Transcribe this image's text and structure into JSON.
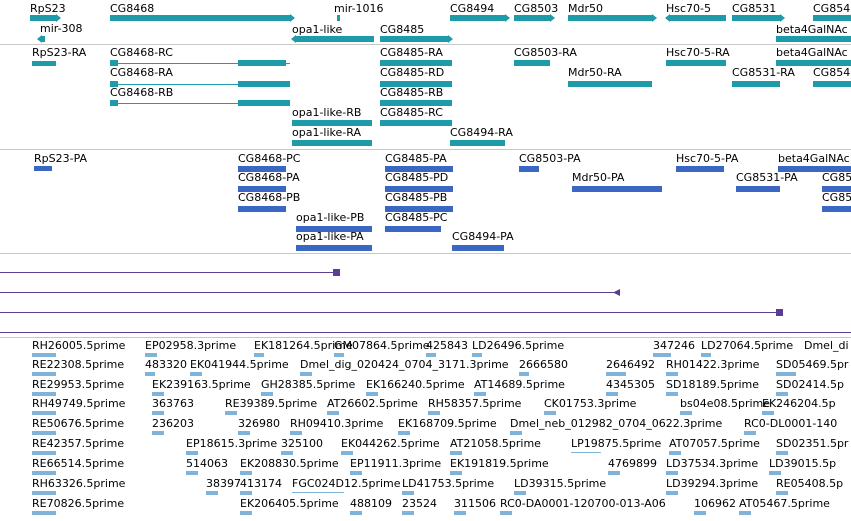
{
  "genes": {
    "row1": [
      "RpS23",
      "CG8468",
      "mir-1016",
      "CG8494",
      "CG8503",
      "Mdr50",
      "Hsc70-5",
      "CG8531",
      "CG854"
    ],
    "row2": [
      "mir-308",
      "opa1-like",
      "CG8485",
      "beta4GalNAc"
    ]
  },
  "transcripts": {
    "row1": [
      "RpS23-RA",
      "CG8468-RC",
      "CG8485-RA",
      "CG8503-RA",
      "Hsc70-5-RA",
      "beta4GalNAc"
    ],
    "row2": [
      "CG8468-RA",
      "CG8485-RD",
      "Mdr50-RA",
      "CG8531-RA",
      "CG854"
    ],
    "row3": [
      "CG8468-RB",
      "CG8485-RB"
    ],
    "row4": [
      "opa1-like-RB",
      "CG8485-RC"
    ],
    "row5": [
      "opa1-like-RA",
      "CG8494-RA"
    ]
  },
  "proteins": {
    "row1": [
      "RpS23-PA",
      "CG8468-PC",
      "CG8485-PA",
      "CG8503-PA",
      "Hsc70-5-PA",
      "beta4GalNAc"
    ],
    "row2": [
      "CG8468-PA",
      "CG8485-PD",
      "Mdr50-PA",
      "CG8531-PA",
      "CG85"
    ],
    "row3": [
      "CG8468-PB",
      "CG8485-PB",
      "CG85"
    ],
    "row4": [
      "opa1-like-PB",
      "CG8485-PC"
    ],
    "row5": [
      "opa1-like-PA",
      "CG8494-PA"
    ]
  },
  "ests": [
    [
      "RH26005.5prime",
      "EP02958.3prime",
      "EK181264.5prime",
      "GM07864.5prime",
      "425843",
      "LD26496.5prime",
      "347246",
      "LD27064.5prime",
      "Dmel_di"
    ],
    [
      "RE22308.5prime",
      "483320",
      "EK041944.5prime",
      "Dmel_dig_020424_0704_3171.3prime",
      "2666580",
      "2646492",
      "RH01422.3prime",
      "SD05469.5pr"
    ],
    [
      "RE29953.5prime",
      "EK239163.5prime",
      "GH28385.5prime",
      "EK166240.5prime",
      "AT14689.5prime",
      "4345305",
      "SD18189.5prime",
      "SD02414.5p"
    ],
    [
      "RH49749.5prime",
      "363763",
      "RE39389.5prime",
      "AT26602.5prime",
      "RH58357.5prime",
      "CK01753.3prime",
      "bs04e08.5prime",
      "EK246204.5p"
    ],
    [
      "RE50676.5prime",
      "236203",
      "326980",
      "RH09410.3prime",
      "EK168709.5prime",
      "Dmel_neb_012982_0704_0622.3prime",
      "RC0-DL0001-140"
    ],
    [
      "RE42357.5prime",
      "EP18615.3prime",
      "325100",
      "EK044262.5prime",
      "AT21058.5prime",
      "LP19875.5prime",
      "AT07057.5prime",
      "SD02351.5pr"
    ],
    [
      "RE66514.5prime",
      "514063",
      "EK208830.5prime",
      "EP11911.3prime",
      "EK191819.5prime",
      "4769899",
      "LD37534.3prime",
      "LD39015.5p"
    ],
    [
      "RH63326.5prime",
      "38397",
      "413174",
      "FGC024D12.5prime",
      "LD41753.5prime",
      "LD39315.5prime",
      "LD39294.3prime",
      "RE05408.5p"
    ],
    [
      "RE70826.5prime",
      "EK206405.5prime",
      "488109",
      "23524",
      "311506",
      "RC0-DA0001-120700-013-A06",
      "106962",
      "AT05467.5prime"
    ]
  ],
  "colors": {
    "gene": "#1f9aa8",
    "protein": "#3a67c4",
    "est": "#7fb3d8",
    "alignment": "#5b3e94"
  }
}
